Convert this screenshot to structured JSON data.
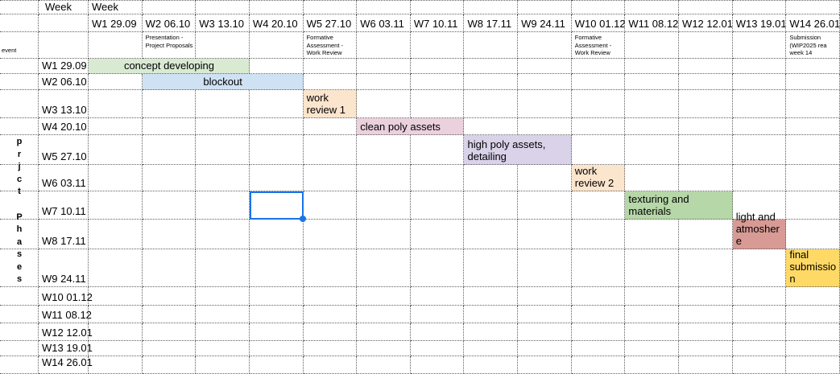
{
  "header": {
    "week_label_col_b": "Week",
    "week_label_col_c": "Week",
    "event_row_label": "event",
    "phases_label": "prjct Phases"
  },
  "weeks": [
    "W1 29.09",
    "W2 06.10",
    "W3 13.10",
    "W4 20.10",
    "W5 27.10",
    "W6 03.11",
    "W7 10.11",
    "W8 17.11",
    "W9 24.11",
    "W10 01.12",
    "W11 08.12",
    "W12 12.01",
    "W13 19.01",
    "W14 26.01"
  ],
  "events": [
    {
      "week_index": 1,
      "text": "Presentation -\nProject Proposals"
    },
    {
      "week_index": 4,
      "text": "Formative\nAssessment -\nWork Review"
    },
    {
      "week_index": 9,
      "text": "Formative\nAssessment -\nWork Review"
    },
    {
      "week_index": 13,
      "text": "Submission\n(WIP2025 rea\nweek 14"
    }
  ],
  "bars": [
    {
      "label": "concept developing",
      "row_index": 0,
      "start_index": 0,
      "span": 3,
      "color": "#d9ead3",
      "align": "center"
    },
    {
      "label": "blockout",
      "row_index": 1,
      "start_index": 1,
      "span": 3,
      "color": "#cfe2f3",
      "align": "center"
    },
    {
      "label": "work review 1",
      "row_index": 2,
      "start_index": 4,
      "span": 1,
      "color": "#fce5cd",
      "align": "left"
    },
    {
      "label": "clean poly assets",
      "row_index": 3,
      "start_index": 5,
      "span": 2,
      "color": "#ead1dc",
      "align": "left"
    },
    {
      "label": "high poly assets, detailing",
      "row_index": 4,
      "start_index": 7,
      "span": 2,
      "color": "#d9d2e9",
      "align": "left"
    },
    {
      "label": "work review 2",
      "row_index": 5,
      "start_index": 9,
      "span": 1,
      "color": "#fce5cd",
      "align": "left"
    },
    {
      "label": "texturing and materials",
      "row_index": 6,
      "start_index": 10,
      "span": 2,
      "color": "#b6d7a8",
      "align": "left"
    },
    {
      "label": "light and atmoshere",
      "row_index": 7,
      "start_index": 12,
      "span": 1,
      "color": "#d79a94",
      "align": "left"
    },
    {
      "label": "final submission",
      "display": "final\nsubmissio\nn",
      "row_index": 8,
      "start_index": 13,
      "span": 1,
      "color": "#ffd966",
      "align": "left"
    }
  ],
  "selection": {
    "row_index": 6,
    "week_index": 3,
    "color": "#1a73e8"
  },
  "grid": {
    "line_color": "#5e5e5e",
    "text_color": "#000000",
    "background": "#ffffff"
  }
}
